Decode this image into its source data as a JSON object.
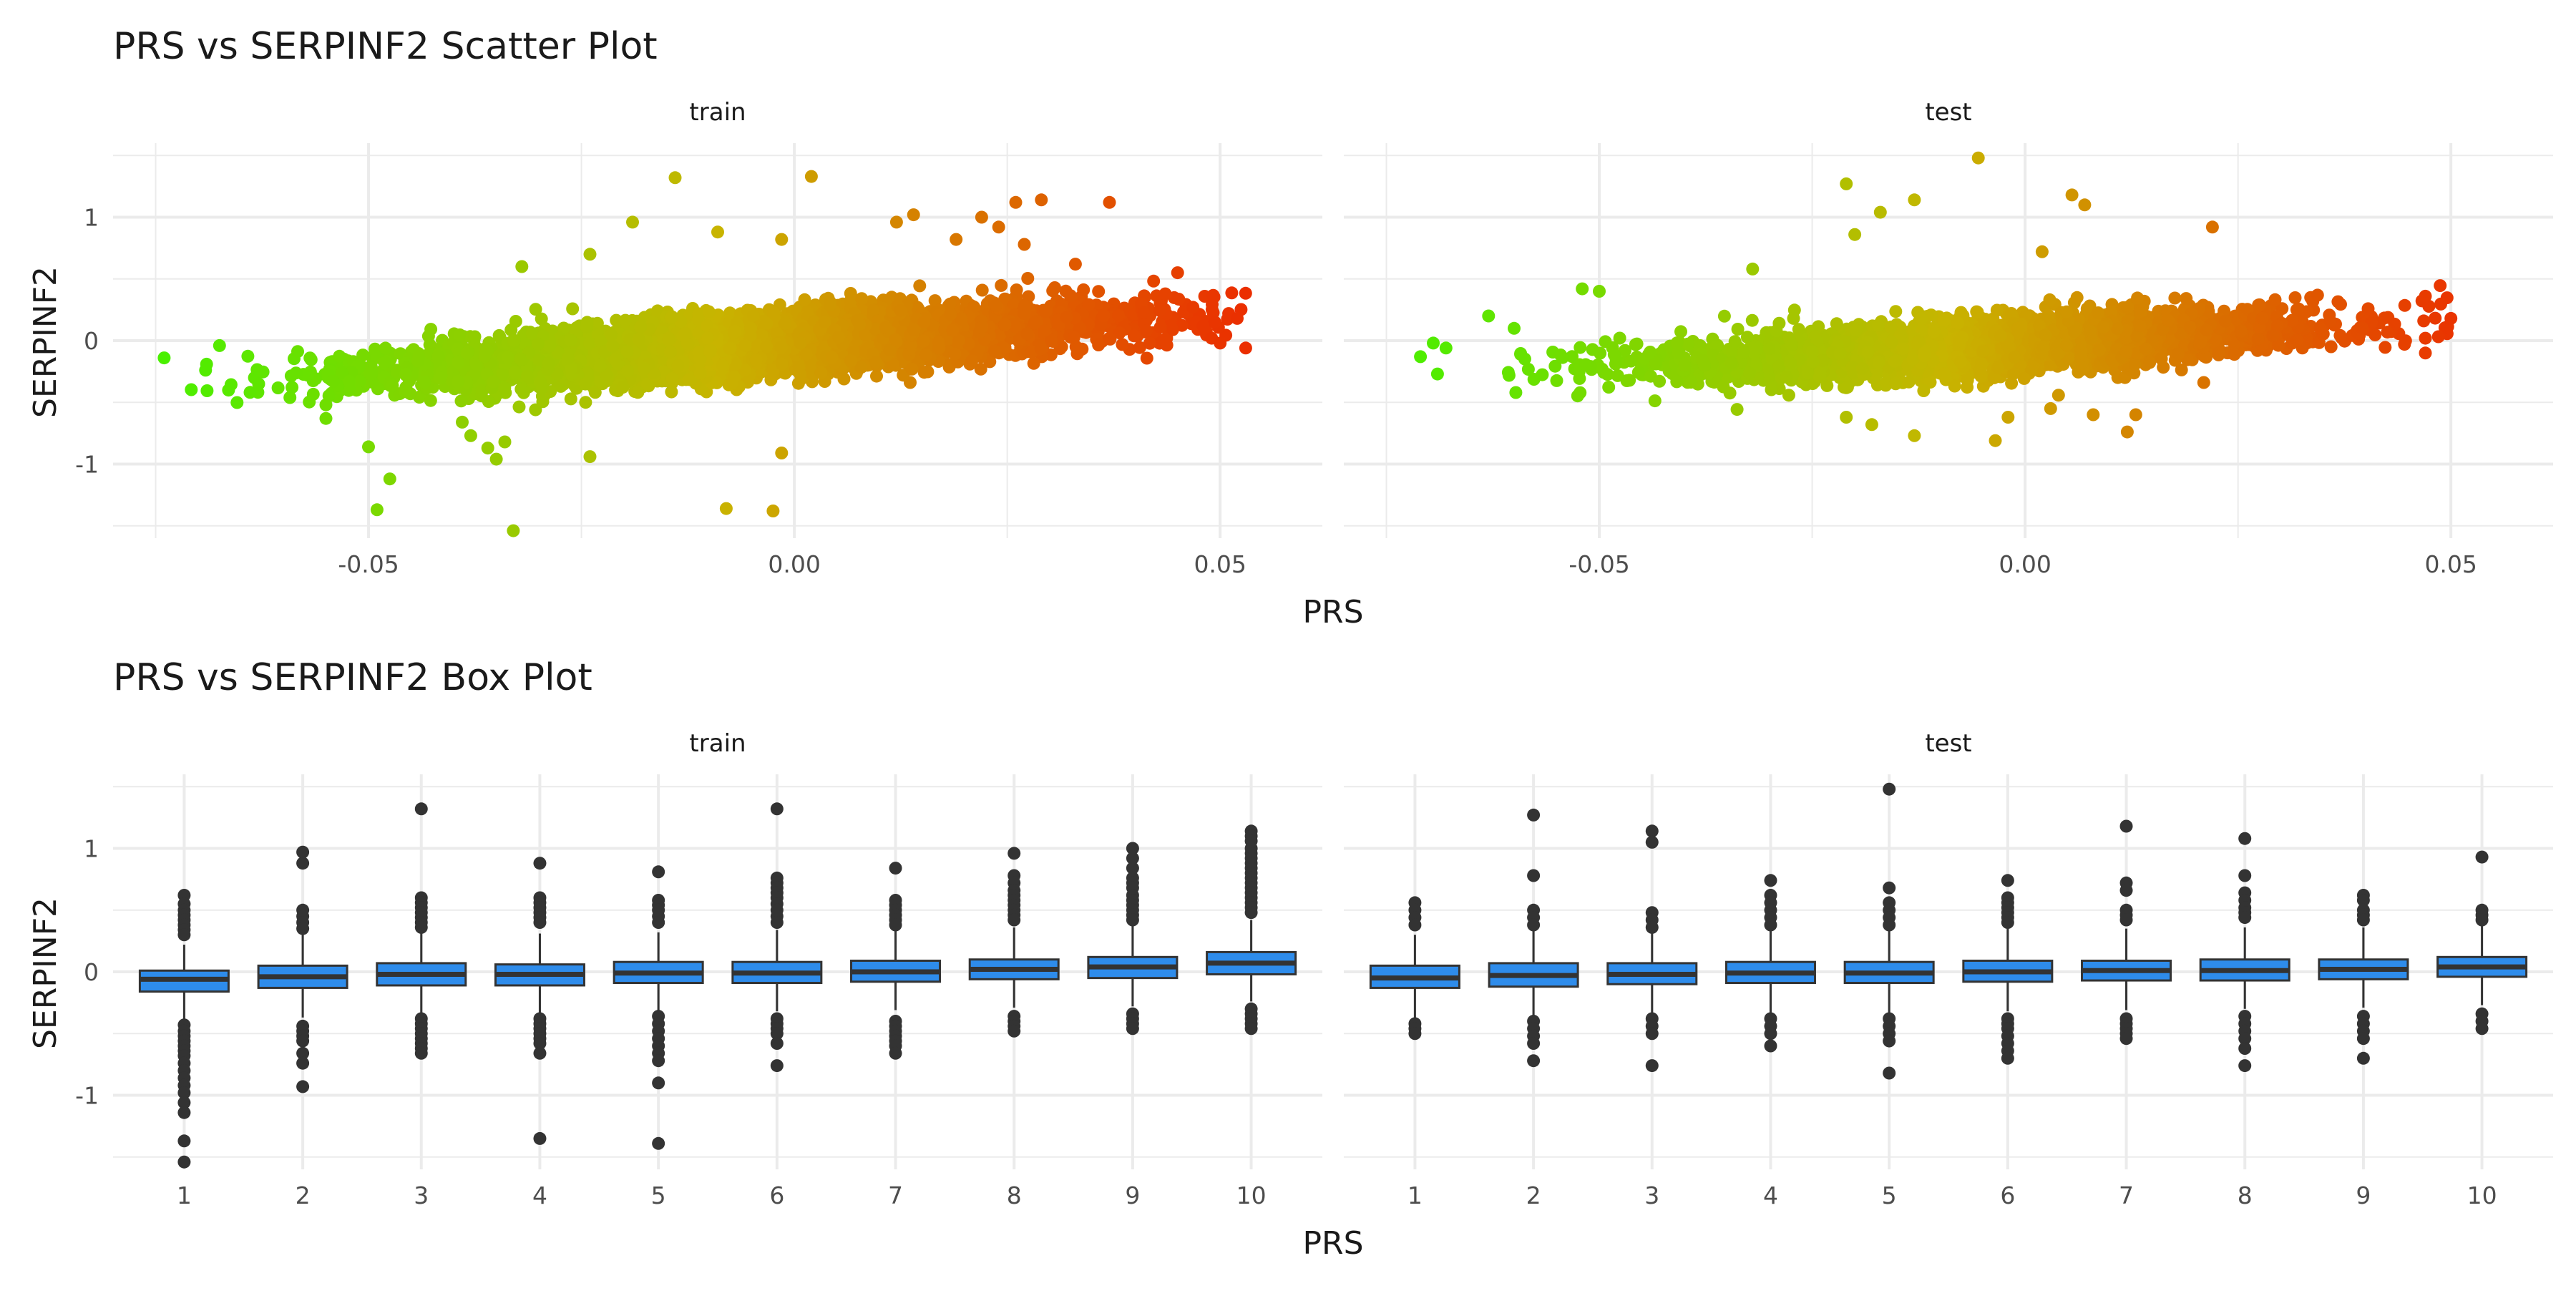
{
  "chart_data": [
    {
      "type": "scatter",
      "title": "PRS vs SERPINF2 Scatter Plot",
      "xlabel": "PRS",
      "ylabel": "SERPINF2",
      "xlim": [
        -0.08,
        0.062
      ],
      "ylim": [
        -1.6,
        1.6
      ],
      "x_ticks": [
        -0.05,
        0.0,
        0.05
      ],
      "x_tick_labels": [
        "-0.05",
        "0.00",
        "0.05"
      ],
      "y_ticks": [
        -1,
        0,
        1
      ],
      "y_tick_labels": [
        "-1",
        "0",
        "1"
      ],
      "grid": true,
      "color_scale": {
        "low": "#3ef500",
        "mid": "#c8b400",
        "high": "#f01a00"
      },
      "panels": [
        {
          "label": "train",
          "n_points": 7000,
          "x_range": [
            -0.075,
            0.053
          ],
          "fit_slope": 5.0,
          "fit_intercept": -0.01,
          "points": [
            [
              -0.074,
              -0.14
            ],
            [
              -0.0675,
              -0.04
            ],
            [
              -0.055,
              -0.52
            ],
            [
              -0.055,
              -0.63
            ],
            [
              -0.05,
              -0.86
            ],
            [
              -0.049,
              -1.37
            ],
            [
              -0.0475,
              -1.12
            ],
            [
              -0.039,
              -0.66
            ],
            [
              -0.038,
              -0.77
            ],
            [
              -0.036,
              -0.87
            ],
            [
              -0.035,
              -0.96
            ],
            [
              -0.034,
              -0.82
            ],
            [
              -0.033,
              -1.54
            ],
            [
              -0.032,
              0.6
            ],
            [
              -0.024,
              -0.94
            ],
            [
              -0.024,
              0.7
            ],
            [
              -0.019,
              0.96
            ],
            [
              -0.014,
              1.32
            ],
            [
              -0.009,
              0.88
            ],
            [
              -0.008,
              -1.36
            ],
            [
              -0.0025,
              -1.38
            ],
            [
              -0.0015,
              0.82
            ],
            [
              0.002,
              1.33
            ],
            [
              -0.0015,
              -0.91
            ],
            [
              0.012,
              0.96
            ],
            [
              0.014,
              1.02
            ],
            [
              0.019,
              0.82
            ],
            [
              0.022,
              1.0
            ],
            [
              0.024,
              0.92
            ],
            [
              0.026,
              1.12
            ],
            [
              0.027,
              0.78
            ],
            [
              0.029,
              1.14
            ],
            [
              0.033,
              0.62
            ],
            [
              0.037,
              1.12
            ],
            [
              0.045,
              0.55
            ],
            [
              0.048,
              0.12
            ],
            [
              0.049,
              0.02
            ],
            [
              0.05,
              -0.02
            ],
            [
              0.051,
              0.22
            ],
            [
              0.052,
              0.18
            ],
            [
              0.053,
              -0.06
            ]
          ]
        },
        {
          "label": "test",
          "n_points": 3000,
          "x_range": [
            -0.071,
            0.05
          ],
          "fit_slope": 4.0,
          "fit_intercept": -0.02,
          "points": [
            [
              -0.071,
              -0.13
            ],
            [
              -0.0695,
              -0.02
            ],
            [
              -0.069,
              -0.27
            ],
            [
              -0.068,
              -0.06
            ],
            [
              -0.063,
              0.2
            ],
            [
              -0.06,
              0.1
            ],
            [
              -0.052,
              0.42
            ],
            [
              -0.05,
              0.4
            ],
            [
              -0.032,
              0.58
            ],
            [
              -0.021,
              1.27
            ],
            [
              -0.021,
              -0.62
            ],
            [
              -0.02,
              0.86
            ],
            [
              -0.018,
              -0.68
            ],
            [
              -0.017,
              1.04
            ],
            [
              -0.013,
              -0.77
            ],
            [
              -0.013,
              1.14
            ],
            [
              -0.0055,
              1.48
            ],
            [
              -0.0035,
              -0.81
            ],
            [
              -0.002,
              -0.62
            ],
            [
              0.002,
              0.72
            ],
            [
              0.003,
              -0.55
            ],
            [
              0.0055,
              1.18
            ],
            [
              0.007,
              1.1
            ],
            [
              0.008,
              -0.6
            ],
            [
              0.012,
              -0.74
            ],
            [
              0.013,
              -0.6
            ],
            [
              0.022,
              0.92
            ],
            [
              0.047,
              0.36
            ],
            [
              0.047,
              0.02
            ],
            [
              0.047,
              -0.1
            ],
            [
              0.05,
              0.18
            ]
          ]
        }
      ]
    },
    {
      "type": "box",
      "title": "PRS vs SERPINF2 Box Plot",
      "xlabel": "PRS",
      "ylabel": "SERPINF2",
      "categories": [
        "1",
        "2",
        "3",
        "4",
        "5",
        "6",
        "7",
        "8",
        "9",
        "10"
      ],
      "ylim": [
        -1.6,
        1.6
      ],
      "y_ticks": [
        -1,
        0,
        1
      ],
      "y_tick_labels": [
        "-1",
        "0",
        "1"
      ],
      "grid": true,
      "fill_color": "#2e8ceb",
      "panels": [
        {
          "label": "train",
          "boxes": [
            {
              "q1": -0.16,
              "median": -0.06,
              "q3": 0.01,
              "lower": -0.4,
              "upper": 0.22,
              "outliers": [
                0.62,
                0.55,
                0.5,
                0.46,
                0.42,
                0.38,
                0.34,
                0.3,
                -0.43,
                -0.48,
                -0.52,
                -0.56,
                -0.6,
                -0.64,
                -0.68,
                -0.74,
                -0.8,
                -0.86,
                -0.92,
                -0.98,
                -1.06,
                -1.14,
                -1.37,
                -1.54
              ]
            },
            {
              "q1": -0.13,
              "median": -0.04,
              "q3": 0.05,
              "lower": -0.37,
              "upper": 0.3,
              "outliers": [
                0.97,
                0.88,
                0.5,
                0.45,
                0.4,
                0.35,
                -0.44,
                -0.48,
                -0.52,
                -0.56,
                -0.66,
                -0.74,
                -0.93
              ]
            },
            {
              "q1": -0.11,
              "median": -0.02,
              "q3": 0.07,
              "lower": -0.35,
              "upper": 0.32,
              "outliers": [
                1.32,
                0.6,
                0.56,
                0.52,
                0.48,
                0.44,
                0.4,
                0.36,
                -0.38,
                -0.42,
                -0.46,
                -0.5,
                -0.54,
                -0.58,
                -0.62,
                -0.66
              ]
            },
            {
              "q1": -0.11,
              "median": -0.02,
              "q3": 0.06,
              "lower": -0.34,
              "upper": 0.31,
              "outliers": [
                0.88,
                0.6,
                0.56,
                0.52,
                0.48,
                0.44,
                0.4,
                -0.38,
                -0.42,
                -0.46,
                -0.5,
                -0.54,
                -0.58,
                -0.66,
                -1.35
              ]
            },
            {
              "q1": -0.09,
              "median": -0.01,
              "q3": 0.08,
              "lower": -0.33,
              "upper": 0.32,
              "outliers": [
                0.81,
                0.58,
                0.54,
                0.5,
                0.45,
                0.4,
                -0.36,
                -0.42,
                -0.48,
                -0.54,
                -0.6,
                -0.66,
                -0.72,
                -0.9,
                -1.39
              ]
            },
            {
              "q1": -0.09,
              "median": -0.01,
              "q3": 0.08,
              "lower": -0.32,
              "upper": 0.34,
              "outliers": [
                1.32,
                0.76,
                0.72,
                0.68,
                0.64,
                0.6,
                0.55,
                0.5,
                0.45,
                0.4,
                -0.38,
                -0.42,
                -0.46,
                -0.5,
                -0.58,
                -0.76
              ]
            },
            {
              "q1": -0.08,
              "median": 0.0,
              "q3": 0.09,
              "lower": -0.31,
              "upper": 0.34,
              "outliers": [
                0.84,
                0.58,
                0.54,
                0.5,
                0.46,
                0.42,
                0.38,
                -0.4,
                -0.44,
                -0.48,
                -0.52,
                -0.56,
                -0.6,
                -0.66
              ]
            },
            {
              "q1": -0.06,
              "median": 0.02,
              "q3": 0.1,
              "lower": -0.29,
              "upper": 0.36,
              "outliers": [
                0.96,
                0.78,
                0.72,
                0.66,
                0.62,
                0.58,
                0.54,
                0.5,
                0.46,
                0.42,
                -0.36,
                -0.4,
                -0.44,
                -0.48
              ]
            },
            {
              "q1": -0.05,
              "median": 0.04,
              "q3": 0.12,
              "lower": -0.28,
              "upper": 0.38,
              "outliers": [
                1.0,
                0.92,
                0.84,
                0.76,
                0.72,
                0.68,
                0.62,
                0.58,
                0.54,
                0.5,
                0.46,
                0.42,
                -0.34,
                -0.38,
                -0.42,
                -0.46
              ]
            },
            {
              "q1": -0.02,
              "median": 0.07,
              "q3": 0.16,
              "lower": -0.24,
              "upper": 0.42,
              "outliers": [
                1.14,
                1.1,
                1.06,
                1.0,
                0.96,
                0.92,
                0.88,
                0.84,
                0.8,
                0.76,
                0.72,
                0.68,
                0.64,
                0.6,
                0.56,
                0.52,
                0.48,
                -0.3,
                -0.34,
                -0.38,
                -0.42,
                -0.46
              ]
            }
          ]
        },
        {
          "label": "test",
          "boxes": [
            {
              "q1": -0.13,
              "median": -0.05,
              "q3": 0.05,
              "lower": -0.38,
              "upper": 0.3,
              "outliers": [
                0.56,
                0.5,
                0.44,
                0.38,
                -0.42,
                -0.46,
                -0.5
              ]
            },
            {
              "q1": -0.12,
              "median": -0.03,
              "q3": 0.07,
              "lower": -0.36,
              "upper": 0.33,
              "outliers": [
                1.27,
                0.78,
                0.5,
                0.44,
                0.38,
                -0.4,
                -0.46,
                -0.52,
                -0.58,
                -0.72
              ]
            },
            {
              "q1": -0.1,
              "median": -0.02,
              "q3": 0.07,
              "lower": -0.34,
              "upper": 0.32,
              "outliers": [
                1.14,
                1.05,
                0.48,
                0.42,
                0.36,
                -0.38,
                -0.44,
                -0.5,
                -0.76
              ]
            },
            {
              "q1": -0.09,
              "median": -0.01,
              "q3": 0.08,
              "lower": -0.33,
              "upper": 0.33,
              "outliers": [
                0.74,
                0.62,
                0.56,
                0.5,
                0.44,
                0.38,
                -0.38,
                -0.44,
                -0.5,
                -0.6
              ]
            },
            {
              "q1": -0.09,
              "median": -0.01,
              "q3": 0.08,
              "lower": -0.33,
              "upper": 0.34,
              "outliers": [
                1.48,
                0.68,
                0.56,
                0.5,
                0.44,
                0.38,
                -0.38,
                -0.44,
                -0.5,
                -0.56,
                -0.82
              ]
            },
            {
              "q1": -0.08,
              "median": 0.0,
              "q3": 0.09,
              "lower": -0.32,
              "upper": 0.35,
              "outliers": [
                0.74,
                0.6,
                0.56,
                0.52,
                0.48,
                0.44,
                0.4,
                -0.38,
                -0.42,
                -0.46,
                -0.52,
                -0.58,
                -0.64,
                -0.7
              ]
            },
            {
              "q1": -0.07,
              "median": 0.01,
              "q3": 0.09,
              "lower": -0.31,
              "upper": 0.35,
              "outliers": [
                1.18,
                0.72,
                0.66,
                0.5,
                0.46,
                0.42,
                -0.38,
                -0.42,
                -0.46,
                -0.5,
                -0.54
              ]
            },
            {
              "q1": -0.07,
              "median": 0.01,
              "q3": 0.1,
              "lower": -0.3,
              "upper": 0.36,
              "outliers": [
                1.08,
                0.78,
                0.64,
                0.58,
                0.52,
                0.48,
                0.44,
                -0.36,
                -0.42,
                -0.48,
                -0.54,
                -0.62,
                -0.76
              ]
            },
            {
              "q1": -0.06,
              "median": 0.02,
              "q3": 0.1,
              "lower": -0.29,
              "upper": 0.36,
              "outliers": [
                0.62,
                0.58,
                0.5,
                0.46,
                0.42,
                -0.36,
                -0.42,
                -0.48,
                -0.54,
                -0.7
              ]
            },
            {
              "q1": -0.04,
              "median": 0.04,
              "q3": 0.12,
              "lower": -0.27,
              "upper": 0.38,
              "outliers": [
                0.93,
                0.5,
                0.46,
                0.42,
                -0.34,
                -0.4,
                -0.46
              ]
            }
          ]
        }
      ]
    }
  ]
}
